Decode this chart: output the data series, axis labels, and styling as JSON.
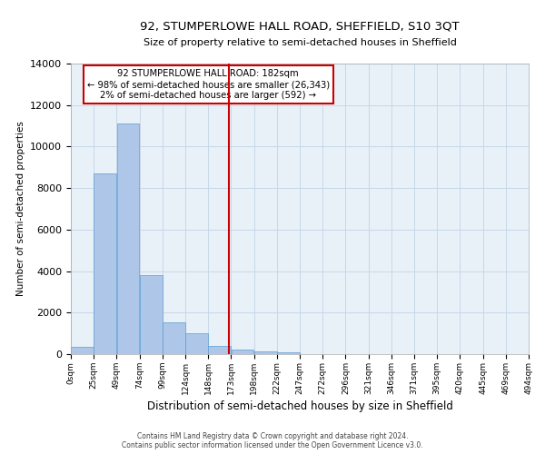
{
  "title": "92, STUMPERLOWE HALL ROAD, SHEFFIELD, S10 3QT",
  "subtitle": "Size of property relative to semi-detached houses in Sheffield",
  "xlabel": "Distribution of semi-detached houses by size in Sheffield",
  "ylabel": "Number of semi-detached properties",
  "bar_values": [
    350,
    8700,
    11100,
    3800,
    1550,
    1000,
    400,
    200,
    150,
    100,
    0,
    0,
    0,
    0,
    0,
    0,
    0,
    0,
    0,
    0
  ],
  "bin_labels": [
    "0sqm",
    "25sqm",
    "49sqm",
    "74sqm",
    "99sqm",
    "124sqm",
    "148sqm",
    "173sqm",
    "198sqm",
    "222sqm",
    "247sqm",
    "272sqm",
    "296sqm",
    "321sqm",
    "346sqm",
    "371sqm",
    "395sqm",
    "420sqm",
    "445sqm",
    "469sqm",
    "494sqm"
  ],
  "bar_color": "#aec6e8",
  "bar_edge_color": "#5a9fd4",
  "property_line_x": 173,
  "property_line_label": "92 STUMPERLOWE HALL ROAD: 182sqm",
  "annotation_smaller": "← 98% of semi-detached houses are smaller (26,343)",
  "annotation_larger": "2% of semi-detached houses are larger (592) →",
  "vline_color": "#cc0000",
  "box_edge_color": "#cc0000",
  "ylim": [
    0,
    14000
  ],
  "yticks": [
    0,
    2000,
    4000,
    6000,
    8000,
    10000,
    12000,
    14000
  ],
  "grid_color": "#c8d8e8",
  "bg_color": "#e8f0f8",
  "footer1": "Contains HM Land Registry data © Crown copyright and database right 2024.",
  "footer2": "Contains public sector information licensed under the Open Government Licence v3.0."
}
